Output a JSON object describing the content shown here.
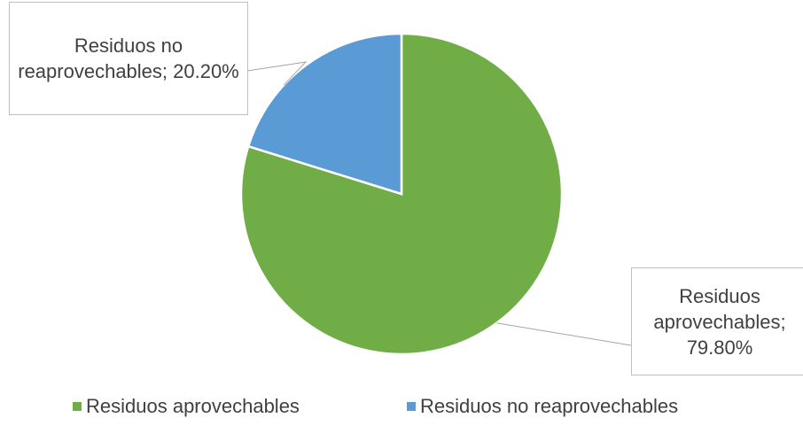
{
  "chart_data": {
    "type": "pie",
    "categories": [
      "Residuos aprovechables",
      "Residuos no reaprovechables"
    ],
    "values": [
      79.8,
      20.2
    ],
    "value_labels": [
      "Residuos aprovechables; 79.80%",
      "Residuos no reaprovechables; 20.20%"
    ],
    "colors": [
      "#70ad47",
      "#5b9bd5"
    ],
    "legend": "bottom"
  }
}
